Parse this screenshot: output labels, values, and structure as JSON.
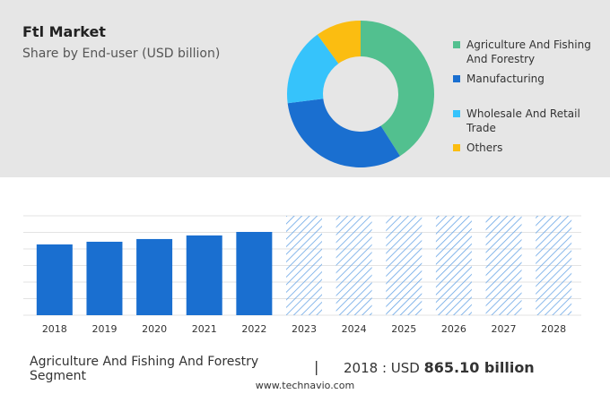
{
  "chart_data": [
    {
      "type": "pie",
      "title": "Ftl Market",
      "subtitle": "Share by End-user (USD billion)",
      "categories": [
        "Agriculture And Fishing And Forestry",
        "Manufacturing",
        "Wholesale And Retail Trade",
        "Others"
      ],
      "values": [
        41,
        32,
        17,
        10
      ],
      "colors": [
        "#52c08f",
        "#1a6fd0",
        "#36c3fb",
        "#fbbd11"
      ]
    },
    {
      "type": "bar",
      "categories": [
        "2018",
        "2019",
        "2020",
        "2021",
        "2022",
        "2023",
        "2024",
        "2025",
        "2026",
        "2027",
        "2028"
      ],
      "values": [
        865.1,
        898,
        931,
        975,
        1018,
        null,
        null,
        null,
        null,
        null,
        null
      ],
      "color": "#1a6fd0",
      "forecast_color": "#6aa6e6",
      "ylim": [
        0,
        1215
      ],
      "grid": true
    }
  ],
  "footer": {
    "segment": "Agriculture And Fishing And Forestry Segment",
    "separator": "|",
    "prefix": "2018 : USD",
    "value": "865.10 billion",
    "site": "www.technavio.com"
  }
}
